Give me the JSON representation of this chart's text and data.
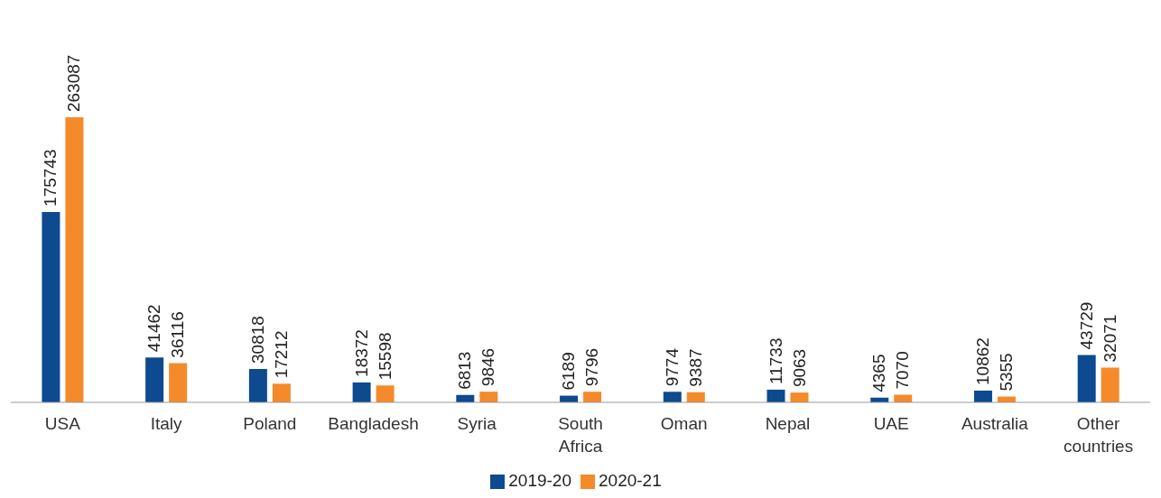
{
  "chart_data": {
    "type": "bar",
    "categories": [
      "USA",
      "Italy",
      "Poland",
      "Bangladesh",
      "Syria",
      "South Africa",
      "Oman",
      "Nepal",
      "UAE",
      "Australia",
      "Other countries"
    ],
    "series": [
      {
        "name": "2019-20",
        "color": "#0d4a8f",
        "values": [
          175743,
          41462,
          30818,
          18372,
          6813,
          6189,
          9774,
          11733,
          4365,
          10862,
          43729
        ]
      },
      {
        "name": "2020-21",
        "color": "#f58a2a",
        "values": [
          263087,
          36116,
          17212,
          15598,
          9846,
          9796,
          9387,
          9063,
          7070,
          5355,
          32071
        ]
      }
    ],
    "data_labels": true,
    "legend": "bottom",
    "grid": false
  }
}
